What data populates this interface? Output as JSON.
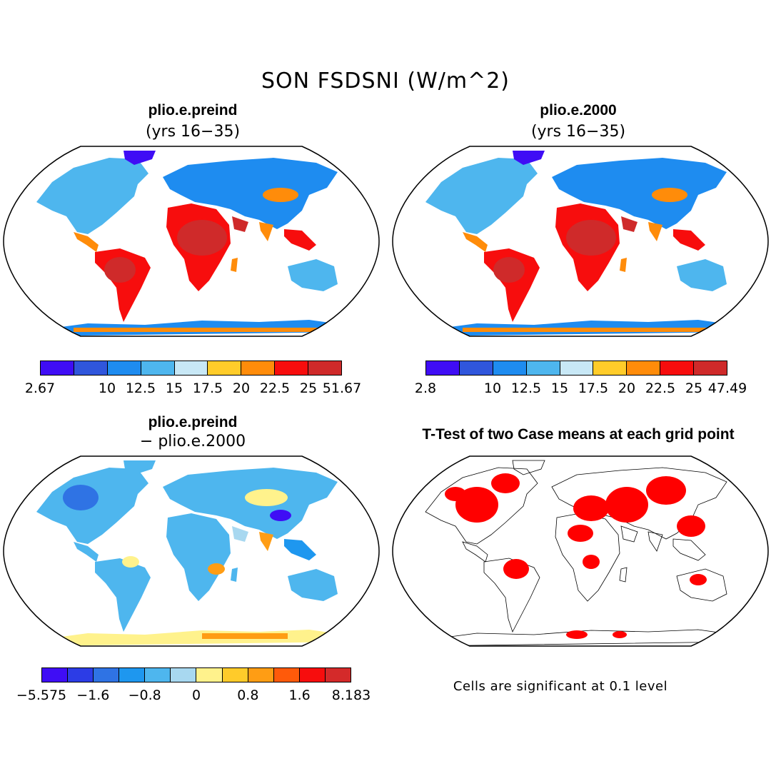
{
  "figure": {
    "title": "SON FSDSNI (W/m^2)"
  },
  "panels": [
    {
      "title": "plio.e.preind",
      "subtitle": "(yrs 16−35)",
      "colorbar": {
        "colors": [
          "#3f0df5",
          "#3056dc",
          "#1e8cf0",
          "#4eb6ee",
          "#c8e8f6",
          "#ffcc2a",
          "#ff8c0a",
          "#f70d0d",
          "#cf2a2a"
        ],
        "labels": [
          "2.67",
          "10",
          "12.5",
          "15",
          "17.5",
          "20",
          "22.5",
          "25",
          "51.67"
        ]
      }
    },
    {
      "title": "plio.e.2000",
      "subtitle": "(yrs 16−35)",
      "colorbar": {
        "colors": [
          "#3f0df5",
          "#3056dc",
          "#1e8cf0",
          "#4eb6ee",
          "#c8e8f6",
          "#ffcc2a",
          "#ff8c0a",
          "#f70d0d",
          "#cf2a2a"
        ],
        "labels": [
          "2.8",
          "10",
          "12.5",
          "15",
          "17.5",
          "20",
          "22.5",
          "25",
          "47.49"
        ]
      }
    },
    {
      "title": "plio.e.preind",
      "subtitle": "− plio.e.2000",
      "colorbar": {
        "colors": [
          "#3f0df5",
          "#2c3ce6",
          "#2f73e4",
          "#1e97ef",
          "#4eb6ee",
          "#a8d8f0",
          "#fff28c",
          "#ffcb2a",
          "#ff9d14",
          "#ff5a0a",
          "#f70d0d",
          "#d42a2a"
        ],
        "labels": [
          "−5.575",
          "−1.6",
          "−0.8",
          "0",
          "0.8",
          "1.6",
          "8.183"
        ],
        "label_slots": [
          0,
          2,
          4,
          6,
          8,
          10,
          12
        ]
      }
    },
    {
      "title": "T-Test of two Case means at each grid point",
      "note": "Cells are significant at 0.1 level",
      "significance_color": "#ff0000"
    }
  ]
}
